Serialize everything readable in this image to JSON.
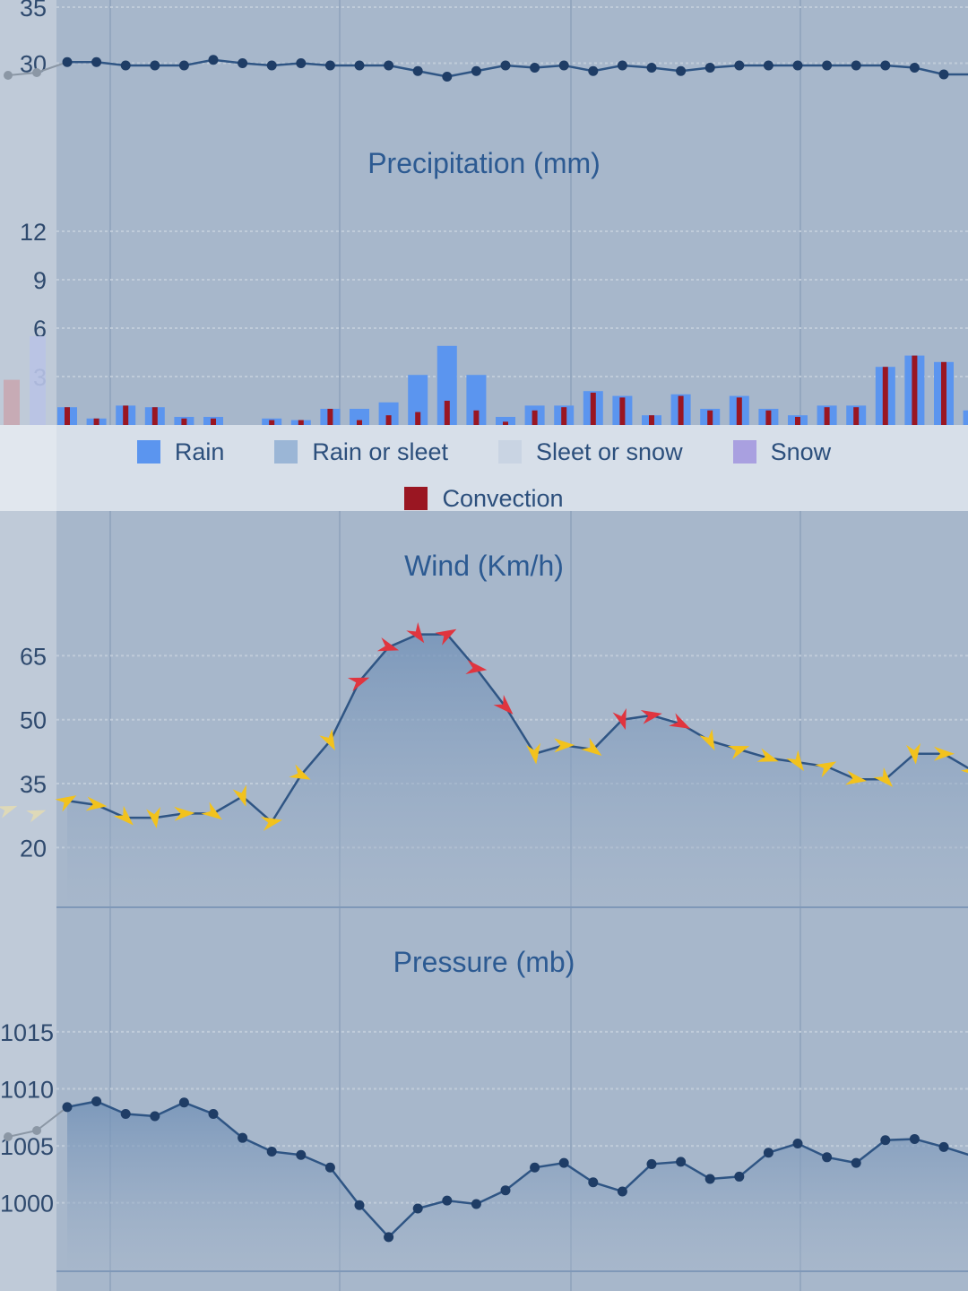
{
  "colors": {
    "plot_bg": "#a7b7cb",
    "axis_gutter": "#bfcad8",
    "line": "#2f5584",
    "marker": "#1f3d66",
    "rain": "#5b95ef",
    "rain_or_sleet": "#9bb6d6",
    "sleet_or_snow": "#c9d4e3",
    "snow": "#a9a0e0",
    "convection": "#9a1622",
    "wind_strong": "#e0353f",
    "wind_moderate": "#f2c21d",
    "title": "#2c5a92"
  },
  "legend": {
    "items": [
      {
        "label": "Rain",
        "color": "#5b95ef"
      },
      {
        "label": "Rain or sleet",
        "color": "#9bb6d6"
      },
      {
        "label": "Sleet or snow",
        "color": "#c9d4e3"
      },
      {
        "label": "Snow",
        "color": "#a9a0e0"
      }
    ],
    "convection": {
      "label": "Convection",
      "color": "#9a1622"
    }
  },
  "chart_data": [
    {
      "type": "line",
      "title": "",
      "yticks": [
        "30",
        "35"
      ],
      "ylim": [
        27,
        35
      ],
      "x": [
        1,
        2,
        3,
        4,
        5,
        6,
        7,
        8,
        9,
        10,
        11,
        12,
        13,
        14,
        15,
        16,
        17,
        18,
        19,
        20,
        21,
        22,
        23,
        24,
        25,
        26,
        27,
        28,
        29,
        30,
        31,
        32,
        33
      ],
      "values": [
        30.1,
        30.1,
        29.8,
        29.8,
        29.8,
        30.3,
        30.0,
        29.8,
        30.0,
        29.8,
        29.8,
        29.8,
        29.3,
        28.8,
        29.3,
        29.8,
        29.6,
        29.8,
        29.3,
        29.8,
        29.6,
        29.3,
        29.6,
        29.8,
        29.8,
        29.8,
        29.8,
        29.8,
        29.8,
        29.6,
        29.0,
        29.0,
        29.3
      ],
      "grid": true
    },
    {
      "type": "bar",
      "title": "Precipitation (mm)",
      "yticks": [
        "3",
        "6",
        "9",
        "12"
      ],
      "ylim": [
        0,
        12
      ],
      "x": [
        1,
        2,
        3,
        4,
        5,
        6,
        7,
        8,
        9,
        10,
        11,
        12,
        13,
        14,
        15,
        16,
        17,
        18,
        19,
        20,
        21,
        22,
        23,
        24,
        25,
        26,
        27,
        28,
        29,
        30,
        31,
        32,
        33
      ],
      "series": [
        {
          "name": "Rain",
          "values": [
            1.1,
            0.4,
            1.2,
            1.1,
            0.5,
            0.5,
            0,
            0.4,
            0.3,
            1.0,
            1.0,
            1.4,
            3.1,
            4.9,
            3.1,
            0.5,
            1.2,
            1.2,
            2.1,
            1.8,
            0.6,
            1.9,
            1.0,
            1.8,
            1.0,
            0.6,
            1.2,
            1.2,
            3.6,
            4.3,
            3.9,
            0.9,
            0
          ]
        },
        {
          "name": "Convection",
          "values": [
            1.1,
            0.4,
            1.2,
            1.1,
            0.4,
            0.4,
            0,
            0.3,
            0.3,
            1.0,
            0.3,
            0.6,
            0.8,
            1.5,
            0.9,
            0.2,
            0.9,
            1.1,
            2.0,
            1.7,
            0.6,
            1.8,
            0.9,
            1.7,
            0.9,
            0.5,
            1.1,
            1.1,
            3.6,
            4.3,
            3.9,
            0.7,
            0
          ]
        }
      ],
      "grid": true
    },
    {
      "type": "area",
      "title": "Wind (Km/h)",
      "yticks": [
        "20",
        "35",
        "50",
        "65"
      ],
      "ylim": [
        6,
        80
      ],
      "x": [
        1,
        2,
        3,
        4,
        5,
        6,
        7,
        8,
        9,
        10,
        11,
        12,
        13,
        14,
        15,
        16,
        17,
        18,
        19,
        20,
        21,
        22,
        23,
        24,
        25,
        26,
        27,
        28,
        29,
        30,
        31,
        32,
        33
      ],
      "values": [
        31,
        30,
        27,
        27,
        28,
        28,
        32,
        26,
        37,
        45,
        59,
        67,
        70,
        70,
        62,
        53,
        42,
        44,
        43,
        50,
        51,
        49,
        45,
        43,
        41,
        40,
        39,
        36,
        36,
        42,
        42,
        38,
        35
      ],
      "series": [
        {
          "name": "direction_color",
          "values": [
            "moderate",
            "moderate",
            "moderate",
            "moderate",
            "moderate",
            "moderate",
            "moderate",
            "moderate",
            "moderate",
            "moderate",
            "strong",
            "strong",
            "strong",
            "strong",
            "strong",
            "strong",
            "moderate",
            "moderate",
            "moderate",
            "strong",
            "strong",
            "strong",
            "moderate",
            "moderate",
            "moderate",
            "moderate",
            "moderate",
            "moderate",
            "moderate",
            "moderate",
            "moderate",
            "moderate",
            "moderate"
          ]
        }
      ],
      "grid": true
    },
    {
      "type": "area",
      "title": "Pressure (mb)",
      "yticks": [
        "1000",
        "1005",
        "1010",
        "1015"
      ],
      "ylim": [
        994,
        1019
      ],
      "x": [
        1,
        2,
        3,
        4,
        5,
        6,
        7,
        8,
        9,
        10,
        11,
        12,
        13,
        14,
        15,
        16,
        17,
        18,
        19,
        20,
        21,
        22,
        23,
        24,
        25,
        26,
        27,
        28,
        29,
        30,
        31,
        32,
        33
      ],
      "values": [
        1008.4,
        1008.9,
        1007.8,
        1007.6,
        1008.8,
        1007.8,
        1005.7,
        1004.5,
        1004.2,
        1003.1,
        999.8,
        997.0,
        999.5,
        1000.2,
        999.9,
        1001.1,
        1003.1,
        1003.5,
        1001.8,
        1001.0,
        1003.4,
        1003.6,
        1002.1,
        1002.3,
        1004.4,
        1005.2,
        1004.0,
        1003.5,
        1005.5,
        1005.6,
        1004.9,
        1004.1,
        1005.6
      ],
      "grid": true
    }
  ]
}
